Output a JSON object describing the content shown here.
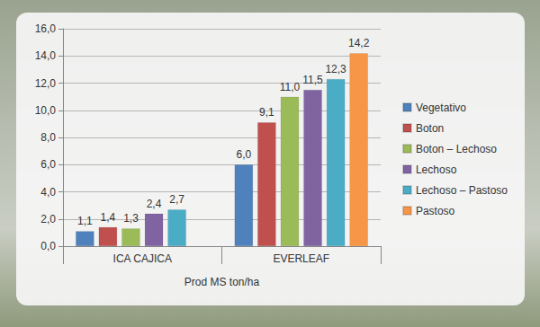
{
  "chart_data": {
    "type": "bar",
    "categories": [
      "ICA CAJICA",
      "EVERLEAF"
    ],
    "x_label": "Prod MS ton/ha",
    "series": [
      {
        "name": "Vegetativo",
        "color": "#4f81bd",
        "values": [
          1.1,
          6.0
        ],
        "value_labels": [
          "1,1",
          "6,0"
        ]
      },
      {
        "name": "Boton",
        "color": "#c0504d",
        "values": [
          1.4,
          9.1
        ],
        "value_labels": [
          "1,4",
          "9,1"
        ]
      },
      {
        "name": "Boton – Lechoso",
        "color": "#9bbb59",
        "values": [
          1.3,
          11.0
        ],
        "value_labels": [
          "1,3",
          "11,0"
        ]
      },
      {
        "name": "Lechoso",
        "color": "#8064a2",
        "values": [
          2.4,
          11.5
        ],
        "value_labels": [
          "2,4",
          "11,5"
        ]
      },
      {
        "name": "Lechoso – Pastoso",
        "color": "#4bacc6",
        "values": [
          2.7,
          12.3
        ],
        "value_labels": [
          "2,7",
          "12,3"
        ]
      },
      {
        "name": "Pastoso",
        "color": "#f79646",
        "values": [
          null,
          14.2
        ],
        "value_labels": [
          null,
          "14,2"
        ]
      }
    ],
    "ylim": [
      0,
      16
    ],
    "yticks": [
      {
        "value": 0,
        "label": "0,0"
      },
      {
        "value": 2,
        "label": "2,0"
      },
      {
        "value": 4,
        "label": "4,0"
      },
      {
        "value": 6,
        "label": "6,0"
      },
      {
        "value": 8,
        "label": "8,0"
      },
      {
        "value": 10,
        "label": "10,0"
      },
      {
        "value": 12,
        "label": "12,0"
      },
      {
        "value": 14,
        "label": "14,0"
      },
      {
        "value": 16,
        "label": "16,0"
      }
    ],
    "grid": true,
    "legend": "right",
    "data_labels": true
  }
}
